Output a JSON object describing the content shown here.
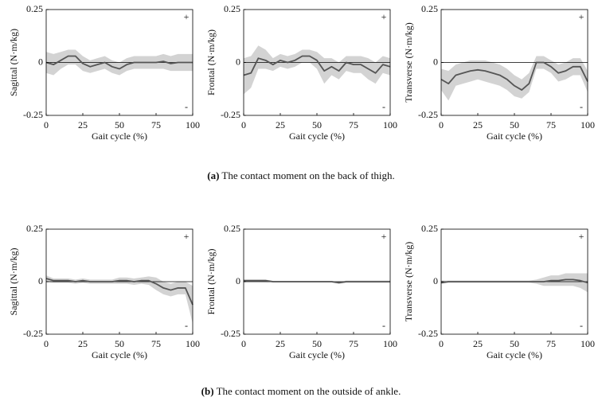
{
  "chart_data": [
    {
      "type": "line",
      "xlabel": "Gait cycle (%)",
      "ylabel": "Sagittal (N·m/kg)",
      "xlim": [
        0,
        100
      ],
      "xticks": [
        0,
        25,
        50,
        75,
        100
      ],
      "ylim": [
        -0.25,
        0.25
      ],
      "yticks": [
        -0.25,
        0,
        0.25
      ],
      "annotations": [
        "+",
        "-"
      ],
      "x": [
        0,
        5,
        10,
        15,
        20,
        25,
        30,
        35,
        40,
        45,
        50,
        55,
        60,
        65,
        70,
        75,
        80,
        85,
        90,
        95,
        100
      ],
      "series": [
        {
          "color": "#555555",
          "band_color": "#d3d3d3",
          "values": [
            0.0,
            -0.01,
            0.01,
            0.03,
            0.03,
            -0.005,
            -0.02,
            -0.01,
            0.0,
            -0.02,
            -0.03,
            -0.01,
            0.0,
            0.0,
            0.0,
            0.0,
            0.005,
            -0.005,
            0.0,
            0.0,
            0.0
          ],
          "lower": [
            -0.05,
            -0.06,
            -0.03,
            -0.01,
            -0.01,
            -0.04,
            -0.05,
            -0.04,
            -0.03,
            -0.05,
            -0.06,
            -0.04,
            -0.03,
            -0.03,
            -0.03,
            -0.03,
            -0.03,
            -0.04,
            -0.04,
            -0.04,
            -0.04
          ],
          "upper": [
            0.05,
            0.04,
            0.05,
            0.06,
            0.06,
            0.03,
            0.01,
            0.02,
            0.03,
            0.01,
            0.0,
            0.02,
            0.03,
            0.03,
            0.03,
            0.03,
            0.04,
            0.03,
            0.04,
            0.04,
            0.04
          ]
        }
      ]
    },
    {
      "type": "line",
      "xlabel": "Gait cycle (%)",
      "ylabel": "Frontal (N·m/kg)",
      "xlim": [
        0,
        100
      ],
      "xticks": [
        0,
        25,
        50,
        75,
        100
      ],
      "ylim": [
        -0.25,
        0.25
      ],
      "yticks": [
        -0.25,
        0,
        0.25
      ],
      "annotations": [
        "+",
        "-"
      ],
      "x": [
        0,
        5,
        10,
        15,
        20,
        25,
        30,
        35,
        40,
        45,
        50,
        55,
        60,
        65,
        70,
        75,
        80,
        85,
        90,
        95,
        100
      ],
      "series": [
        {
          "color": "#555555",
          "band_color": "#d3d3d3",
          "values": [
            -0.06,
            -0.05,
            0.02,
            0.01,
            -0.01,
            0.01,
            0.0,
            0.01,
            0.03,
            0.03,
            0.01,
            -0.04,
            -0.02,
            -0.04,
            0.0,
            -0.01,
            -0.01,
            -0.03,
            -0.05,
            -0.01,
            -0.02
          ],
          "lower": [
            -0.15,
            -0.12,
            -0.03,
            -0.03,
            -0.04,
            -0.02,
            -0.03,
            -0.02,
            0.0,
            0.0,
            -0.03,
            -0.1,
            -0.06,
            -0.08,
            -0.04,
            -0.05,
            -0.05,
            -0.08,
            -0.1,
            -0.05,
            -0.06
          ],
          "upper": [
            0.02,
            0.03,
            0.08,
            0.06,
            0.02,
            0.04,
            0.03,
            0.04,
            0.06,
            0.06,
            0.05,
            0.02,
            0.02,
            0.0,
            0.03,
            0.03,
            0.03,
            0.02,
            0.0,
            0.03,
            0.02
          ]
        }
      ]
    },
    {
      "type": "line",
      "xlabel": "Gait cycle (%)",
      "ylabel": "Transverse (N·m/kg)",
      "xlim": [
        0,
        100
      ],
      "xticks": [
        0,
        25,
        50,
        75,
        100
      ],
      "ylim": [
        -0.25,
        0.25
      ],
      "yticks": [
        -0.25,
        0,
        0.25
      ],
      "annotations": [
        "+",
        "-"
      ],
      "x": [
        0,
        5,
        10,
        15,
        20,
        25,
        30,
        35,
        40,
        45,
        50,
        55,
        60,
        65,
        70,
        75,
        80,
        85,
        90,
        95,
        100
      ],
      "series": [
        {
          "color": "#555555",
          "band_color": "#d3d3d3",
          "values": [
            -0.08,
            -0.1,
            -0.06,
            -0.05,
            -0.04,
            -0.035,
            -0.04,
            -0.05,
            -0.06,
            -0.08,
            -0.11,
            -0.13,
            -0.1,
            0.0,
            0.0,
            -0.02,
            -0.05,
            -0.04,
            -0.02,
            -0.02,
            -0.09
          ],
          "lower": [
            -0.13,
            -0.18,
            -0.11,
            -0.1,
            -0.09,
            -0.08,
            -0.09,
            -0.1,
            -0.11,
            -0.13,
            -0.16,
            -0.17,
            -0.14,
            -0.03,
            -0.03,
            -0.05,
            -0.09,
            -0.08,
            -0.06,
            -0.06,
            -0.14
          ],
          "upper": [
            -0.03,
            -0.04,
            -0.01,
            0.0,
            0.01,
            0.01,
            0.01,
            0.0,
            -0.01,
            -0.03,
            -0.06,
            -0.08,
            -0.05,
            0.03,
            0.03,
            0.01,
            -0.01,
            0.0,
            0.02,
            0.02,
            -0.04
          ]
        }
      ]
    },
    {
      "type": "line",
      "xlabel": "Gait cycle (%)",
      "ylabel": "Sagittal (N·m/kg)",
      "xlim": [
        0,
        100
      ],
      "xticks": [
        0,
        25,
        50,
        75,
        100
      ],
      "ylim": [
        -0.25,
        0.25
      ],
      "yticks": [
        -0.25,
        0,
        0.25
      ],
      "annotations": [
        "+",
        "-"
      ],
      "x": [
        0,
        5,
        10,
        15,
        20,
        25,
        30,
        35,
        40,
        45,
        50,
        55,
        60,
        65,
        70,
        75,
        80,
        85,
        90,
        95,
        100
      ],
      "series": [
        {
          "color": "#555555",
          "band_color": "#d3d3d3",
          "values": [
            0.015,
            0.005,
            0.005,
            0.005,
            0.0,
            0.005,
            0.0,
            0.0,
            0.0,
            0.0,
            0.005,
            0.005,
            0.0,
            0.005,
            0.005,
            -0.01,
            -0.03,
            -0.04,
            -0.03,
            -0.03,
            -0.11
          ],
          "lower": [
            0.0,
            -0.005,
            -0.005,
            -0.005,
            -0.01,
            -0.005,
            -0.01,
            -0.01,
            -0.01,
            -0.01,
            -0.01,
            -0.01,
            -0.015,
            -0.01,
            -0.015,
            -0.04,
            -0.06,
            -0.07,
            -0.06,
            -0.06,
            -0.2
          ],
          "upper": [
            0.03,
            0.015,
            0.015,
            0.015,
            0.01,
            0.015,
            0.01,
            0.01,
            0.01,
            0.01,
            0.02,
            0.02,
            0.015,
            0.02,
            0.025,
            0.02,
            0.0,
            -0.01,
            0.0,
            0.0,
            -0.02
          ]
        }
      ]
    },
    {
      "type": "line",
      "xlabel": "Gait cycle (%)",
      "ylabel": "Frontal (N·m/kg)",
      "xlim": [
        0,
        100
      ],
      "xticks": [
        0,
        25,
        50,
        75,
        100
      ],
      "ylim": [
        -0.25,
        0.25
      ],
      "yticks": [
        -0.25,
        0,
        0.25
      ],
      "annotations": [
        "+",
        "-"
      ],
      "x": [
        0,
        5,
        10,
        15,
        20,
        25,
        30,
        35,
        40,
        45,
        50,
        55,
        60,
        65,
        70,
        75,
        80,
        85,
        90,
        95,
        100
      ],
      "series": [
        {
          "color": "#555555",
          "band_color": "#d3d3d3",
          "values": [
            0.005,
            0.005,
            0.005,
            0.005,
            0.0,
            0.0,
            0.0,
            0.0,
            0.0,
            0.0,
            0.0,
            0.0,
            0.0,
            -0.005,
            0.0,
            0.0,
            0.0,
            0.0,
            0.0,
            0.0,
            0.0
          ],
          "lower": [
            0.0,
            0.0,
            0.0,
            -0.002,
            -0.004,
            -0.004,
            -0.004,
            -0.004,
            -0.004,
            -0.004,
            -0.004,
            -0.004,
            -0.004,
            -0.01,
            -0.005,
            -0.005,
            -0.005,
            -0.005,
            -0.005,
            -0.005,
            -0.005
          ],
          "upper": [
            0.01,
            0.01,
            0.01,
            0.01,
            0.004,
            0.004,
            0.004,
            0.004,
            0.004,
            0.004,
            0.004,
            0.004,
            0.004,
            0.0,
            0.005,
            0.005,
            0.005,
            0.005,
            0.005,
            0.005,
            0.005
          ]
        }
      ]
    },
    {
      "type": "line",
      "xlabel": "Gait cycle (%)",
      "ylabel": "Transverse (N·m/kg)",
      "xlim": [
        0,
        100
      ],
      "xticks": [
        0,
        25,
        50,
        75,
        100
      ],
      "ylim": [
        -0.25,
        0.25
      ],
      "yticks": [
        -0.25,
        0,
        0.25
      ],
      "annotations": [
        "+",
        "-"
      ],
      "x": [
        0,
        5,
        10,
        15,
        20,
        25,
        30,
        35,
        40,
        45,
        50,
        55,
        60,
        65,
        70,
        75,
        80,
        85,
        90,
        95,
        100
      ],
      "series": [
        {
          "color": "#555555",
          "band_color": "#d3d3d3",
          "values": [
            -0.005,
            0.0,
            0.0,
            0.0,
            0.0,
            0.0,
            0.0,
            0.0,
            0.0,
            0.0,
            0.0,
            0.0,
            0.0,
            0.0,
            0.0,
            0.005,
            0.005,
            0.01,
            0.01,
            0.005,
            -0.005
          ],
          "lower": [
            -0.01,
            -0.005,
            -0.005,
            -0.005,
            -0.005,
            -0.005,
            -0.005,
            -0.005,
            -0.005,
            -0.005,
            -0.005,
            -0.005,
            -0.005,
            -0.01,
            -0.02,
            -0.02,
            -0.02,
            -0.02,
            -0.02,
            -0.03,
            -0.05
          ],
          "upper": [
            0.005,
            0.005,
            0.005,
            0.005,
            0.005,
            0.005,
            0.005,
            0.005,
            0.005,
            0.005,
            0.005,
            0.005,
            0.005,
            0.01,
            0.02,
            0.03,
            0.03,
            0.04,
            0.04,
            0.04,
            0.04
          ]
        }
      ]
    }
  ],
  "captions": [
    {
      "label": "(a)",
      "text": "The contact moment on the back of thigh."
    },
    {
      "label": "(b)",
      "text": "The contact moment on the outside of ankle."
    }
  ]
}
